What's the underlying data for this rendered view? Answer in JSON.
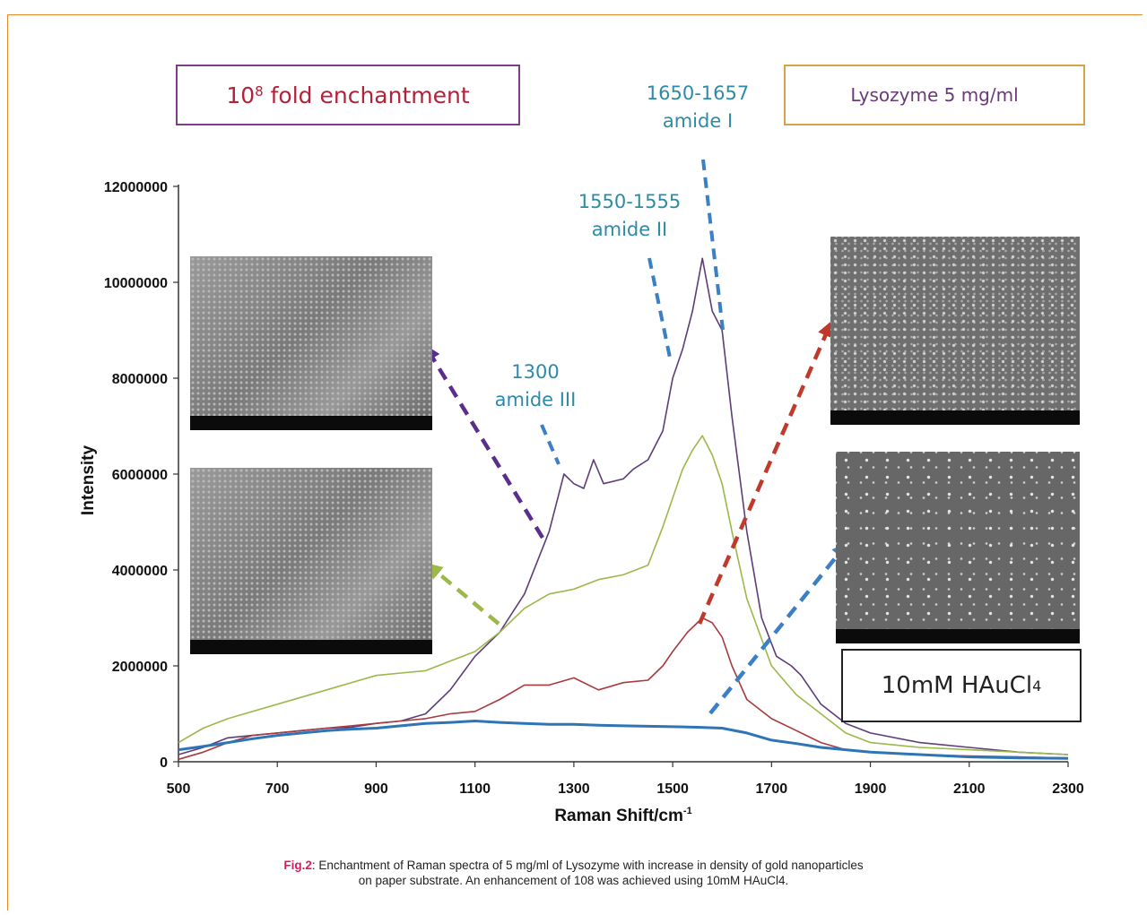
{
  "chart_data": {
    "type": "line",
    "xlabel": "Raman Shift/cm",
    "xlabel_sup": "-1",
    "ylabel": "Intensity",
    "xlim": [
      500,
      2300
    ],
    "ylim": [
      0,
      12000000
    ],
    "x_ticks": [
      500,
      700,
      900,
      1100,
      1300,
      1500,
      1700,
      1900,
      2100,
      2300
    ],
    "y_ticks": [
      0,
      2000000,
      4000000,
      6000000,
      8000000,
      10000000,
      12000000
    ],
    "legend": "none",
    "grid": false,
    "series": [
      {
        "color": "#5c3d78",
        "points": [
          [
            500,
            150000
          ],
          [
            550,
            300000
          ],
          [
            600,
            500000
          ],
          [
            650,
            550000
          ],
          [
            700,
            600000
          ],
          [
            750,
            650000
          ],
          [
            800,
            700000
          ],
          [
            850,
            720000
          ],
          [
            900,
            800000
          ],
          [
            950,
            850000
          ],
          [
            1000,
            1000000
          ],
          [
            1050,
            1500000
          ],
          [
            1100,
            2200000
          ],
          [
            1150,
            2700000
          ],
          [
            1200,
            3500000
          ],
          [
            1250,
            4800000
          ],
          [
            1280,
            6000000
          ],
          [
            1300,
            5800000
          ],
          [
            1320,
            5700000
          ],
          [
            1340,
            6300000
          ],
          [
            1360,
            5800000
          ],
          [
            1400,
            5900000
          ],
          [
            1420,
            6100000
          ],
          [
            1450,
            6300000
          ],
          [
            1480,
            6900000
          ],
          [
            1500,
            8000000
          ],
          [
            1520,
            8600000
          ],
          [
            1540,
            9400000
          ],
          [
            1560,
            10500000
          ],
          [
            1580,
            9400000
          ],
          [
            1600,
            9000000
          ],
          [
            1620,
            7200000
          ],
          [
            1650,
            4800000
          ],
          [
            1680,
            3000000
          ],
          [
            1710,
            2200000
          ],
          [
            1740,
            2000000
          ],
          [
            1760,
            1800000
          ],
          [
            1800,
            1200000
          ],
          [
            1850,
            800000
          ],
          [
            1900,
            600000
          ],
          [
            2000,
            400000
          ],
          [
            2100,
            300000
          ],
          [
            2200,
            200000
          ],
          [
            2300,
            150000
          ]
        ]
      },
      {
        "color": "#9cb84a",
        "points": [
          [
            500,
            400000
          ],
          [
            550,
            700000
          ],
          [
            600,
            900000
          ],
          [
            700,
            1200000
          ],
          [
            800,
            1500000
          ],
          [
            900,
            1800000
          ],
          [
            950,
            1850000
          ],
          [
            1000,
            1900000
          ],
          [
            1050,
            2100000
          ],
          [
            1100,
            2300000
          ],
          [
            1150,
            2700000
          ],
          [
            1200,
            3200000
          ],
          [
            1250,
            3500000
          ],
          [
            1300,
            3600000
          ],
          [
            1350,
            3800000
          ],
          [
            1400,
            3900000
          ],
          [
            1450,
            4100000
          ],
          [
            1480,
            4900000
          ],
          [
            1500,
            5500000
          ],
          [
            1520,
            6100000
          ],
          [
            1540,
            6500000
          ],
          [
            1560,
            6800000
          ],
          [
            1580,
            6400000
          ],
          [
            1600,
            5800000
          ],
          [
            1620,
            4800000
          ],
          [
            1650,
            3400000
          ],
          [
            1700,
            2000000
          ],
          [
            1750,
            1400000
          ],
          [
            1800,
            1000000
          ],
          [
            1850,
            600000
          ],
          [
            1900,
            400000
          ],
          [
            2000,
            300000
          ],
          [
            2100,
            250000
          ],
          [
            2200,
            200000
          ],
          [
            2300,
            150000
          ]
        ]
      },
      {
        "color": "#a83a3d",
        "points": [
          [
            500,
            50000
          ],
          [
            550,
            200000
          ],
          [
            600,
            400000
          ],
          [
            650,
            550000
          ],
          [
            700,
            600000
          ],
          [
            750,
            650000
          ],
          [
            800,
            700000
          ],
          [
            850,
            750000
          ],
          [
            900,
            800000
          ],
          [
            950,
            850000
          ],
          [
            1000,
            900000
          ],
          [
            1050,
            1000000
          ],
          [
            1100,
            1050000
          ],
          [
            1150,
            1300000
          ],
          [
            1200,
            1600000
          ],
          [
            1250,
            1600000
          ],
          [
            1300,
            1750000
          ],
          [
            1350,
            1500000
          ],
          [
            1400,
            1650000
          ],
          [
            1450,
            1700000
          ],
          [
            1480,
            2000000
          ],
          [
            1500,
            2300000
          ],
          [
            1530,
            2700000
          ],
          [
            1560,
            3000000
          ],
          [
            1580,
            2900000
          ],
          [
            1600,
            2600000
          ],
          [
            1620,
            2000000
          ],
          [
            1650,
            1300000
          ],
          [
            1700,
            900000
          ],
          [
            1750,
            650000
          ],
          [
            1800,
            400000
          ],
          [
            1850,
            250000
          ],
          [
            1900,
            200000
          ],
          [
            2000,
            150000
          ],
          [
            2100,
            120000
          ],
          [
            2200,
            100000
          ],
          [
            2300,
            80000
          ]
        ]
      },
      {
        "color": "#2e75b6",
        "points": [
          [
            500,
            250000
          ],
          [
            550,
            320000
          ],
          [
            600,
            400000
          ],
          [
            650,
            480000
          ],
          [
            700,
            550000
          ],
          [
            750,
            600000
          ],
          [
            800,
            650000
          ],
          [
            850,
            680000
          ],
          [
            900,
            700000
          ],
          [
            950,
            750000
          ],
          [
            1000,
            800000
          ],
          [
            1050,
            820000
          ],
          [
            1100,
            850000
          ],
          [
            1150,
            820000
          ],
          [
            1200,
            800000
          ],
          [
            1250,
            780000
          ],
          [
            1300,
            780000
          ],
          [
            1350,
            760000
          ],
          [
            1400,
            750000
          ],
          [
            1450,
            740000
          ],
          [
            1500,
            730000
          ],
          [
            1550,
            720000
          ],
          [
            1600,
            700000
          ],
          [
            1650,
            600000
          ],
          [
            1700,
            450000
          ],
          [
            1750,
            380000
          ],
          [
            1800,
            300000
          ],
          [
            1850,
            250000
          ],
          [
            1900,
            200000
          ],
          [
            2000,
            150000
          ],
          [
            2100,
            100000
          ],
          [
            2200,
            80000
          ],
          [
            2300,
            70000
          ]
        ]
      }
    ],
    "annotations": [
      {
        "lines": [
          "1650-1657",
          "amide I"
        ],
        "color": "#2f8aa8"
      },
      {
        "lines": [
          "1550-1555",
          "amide II"
        ],
        "color": "#2f8aa8"
      },
      {
        "lines": [
          "1300",
          "amide III"
        ],
        "color": "#2f8aa8"
      }
    ]
  },
  "labels": {
    "fold_box": "10",
    "fold_box_sup": "8",
    "fold_box_rest": " fold enchantment",
    "lysozyme_box": "Lysozyme 5 mg/ml",
    "hau_box": "10mM HAuCl",
    "hau_box_sub": "4"
  },
  "caption": {
    "fig_label": "Fig.2",
    "line1": ": Enchantment of Raman spectra of 5 mg/ml of Lysozyme with increase in density of gold nanoparticles",
    "line2": "on paper substrate. An enhancement of 108 was achieved using 10mM HAuCl4."
  }
}
